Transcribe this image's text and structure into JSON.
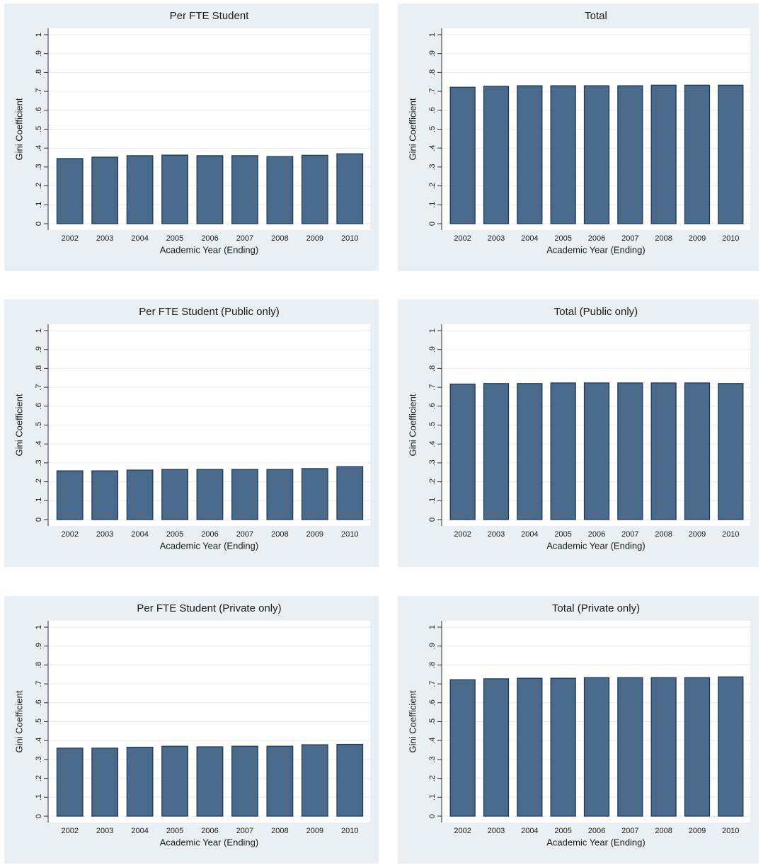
{
  "chart_data": [
    {
      "type": "bar",
      "title": "Per FTE Student",
      "x_label": "Academic Year (Ending)",
      "y_label": "Gini Coefficient",
      "categories": [
        "2002",
        "2003",
        "2004",
        "2005",
        "2006",
        "2007",
        "2008",
        "2009",
        "2010"
      ],
      "values": [
        0.345,
        0.352,
        0.36,
        0.363,
        0.36,
        0.36,
        0.355,
        0.362,
        0.37
      ],
      "color": "#4a6a8b",
      "ylim": [
        0,
        1
      ],
      "yticks": [
        0,
        {
          "value": 0.1,
          "label": ".1"
        },
        {
          "value": 0.2,
          "label": ".2"
        },
        {
          "value": 0.3,
          "label": ".3"
        },
        {
          "value": 0.4,
          "label": ".4"
        },
        {
          "value": 0.5,
          "label": ".5"
        },
        {
          "value": 0.6,
          "label": ".6"
        },
        {
          "value": 0.7,
          "label": ".7"
        },
        {
          "value": 0.8,
          "label": ".8"
        },
        {
          "value": 0.9,
          "label": ".9"
        },
        1
      ],
      "grid": true
    },
    {
      "type": "bar",
      "title": "Total",
      "x_label": "Academic Year (Ending)",
      "y_label": "Gini Coefficient",
      "categories": [
        "2002",
        "2003",
        "2004",
        "2005",
        "2006",
        "2007",
        "2008",
        "2009",
        "2010"
      ],
      "values": [
        0.722,
        0.727,
        0.73,
        0.73,
        0.73,
        0.73,
        0.733,
        0.733,
        0.733
      ],
      "color": "#4a6a8b",
      "ylim": [
        0,
        1
      ],
      "yticks": [
        0,
        {
          "value": 0.1,
          "label": ".1"
        },
        {
          "value": 0.2,
          "label": ".2"
        },
        {
          "value": 0.3,
          "label": ".3"
        },
        {
          "value": 0.4,
          "label": ".4"
        },
        {
          "value": 0.5,
          "label": ".5"
        },
        {
          "value": 0.6,
          "label": ".6"
        },
        {
          "value": 0.7,
          "label": ".7"
        },
        {
          "value": 0.8,
          "label": ".8"
        },
        {
          "value": 0.9,
          "label": ".9"
        },
        1
      ],
      "grid": true
    },
    {
      "type": "bar",
      "title": "Per FTE Student (Public only)",
      "x_label": "Academic Year (Ending)",
      "y_label": "Gini Coefficient",
      "categories": [
        "2002",
        "2003",
        "2004",
        "2005",
        "2006",
        "2007",
        "2008",
        "2009",
        "2010"
      ],
      "values": [
        0.258,
        0.258,
        0.262,
        0.265,
        0.265,
        0.265,
        0.265,
        0.27,
        0.28
      ],
      "color": "#4a6a8b",
      "ylim": [
        0,
        1
      ],
      "yticks": [
        0,
        {
          "value": 0.1,
          "label": ".1"
        },
        {
          "value": 0.2,
          "label": ".2"
        },
        {
          "value": 0.3,
          "label": ".3"
        },
        {
          "value": 0.4,
          "label": ".4"
        },
        {
          "value": 0.5,
          "label": ".5"
        },
        {
          "value": 0.6,
          "label": ".6"
        },
        {
          "value": 0.7,
          "label": ".7"
        },
        {
          "value": 0.8,
          "label": ".8"
        },
        {
          "value": 0.9,
          "label": ".9"
        },
        1
      ],
      "grid": true
    },
    {
      "type": "bar",
      "title": "Total (Public only)",
      "x_label": "Academic Year (Ending)",
      "y_label": "Gini Coefficient",
      "categories": [
        "2002",
        "2003",
        "2004",
        "2005",
        "2006",
        "2007",
        "2008",
        "2009",
        "2010"
      ],
      "values": [
        0.717,
        0.72,
        0.72,
        0.723,
        0.723,
        0.723,
        0.723,
        0.723,
        0.72
      ],
      "color": "#4a6a8b",
      "ylim": [
        0,
        1
      ],
      "yticks": [
        0,
        {
          "value": 0.1,
          "label": ".1"
        },
        {
          "value": 0.2,
          "label": ".2"
        },
        {
          "value": 0.3,
          "label": ".3"
        },
        {
          "value": 0.4,
          "label": ".4"
        },
        {
          "value": 0.5,
          "label": ".5"
        },
        {
          "value": 0.6,
          "label": ".6"
        },
        {
          "value": 0.7,
          "label": ".7"
        },
        {
          "value": 0.8,
          "label": ".8"
        },
        {
          "value": 0.9,
          "label": ".9"
        },
        1
      ],
      "grid": true
    },
    {
      "type": "bar",
      "title": "Per FTE Student (Private only)",
      "x_label": "Academic Year (Ending)",
      "y_label": "Gini Coefficient",
      "categories": [
        "2002",
        "2003",
        "2004",
        "2005",
        "2006",
        "2007",
        "2008",
        "2009",
        "2010"
      ],
      "values": [
        0.36,
        0.36,
        0.365,
        0.37,
        0.367,
        0.37,
        0.37,
        0.378,
        0.38
      ],
      "color": "#4a6a8b",
      "ylim": [
        0,
        1
      ],
      "yticks": [
        0,
        {
          "value": 0.1,
          "label": ".1"
        },
        {
          "value": 0.2,
          "label": ".2"
        },
        {
          "value": 0.3,
          "label": ".3"
        },
        {
          "value": 0.4,
          "label": ".4"
        },
        {
          "value": 0.5,
          "label": ".5"
        },
        {
          "value": 0.6,
          "label": ".6"
        },
        {
          "value": 0.7,
          "label": ".7"
        },
        {
          "value": 0.8,
          "label": ".8"
        },
        {
          "value": 0.9,
          "label": ".9"
        },
        1
      ],
      "grid": true
    },
    {
      "type": "bar",
      "title": "Total (Private only)",
      "x_label": "Academic Year (Ending)",
      "y_label": "Gini Coefficient",
      "categories": [
        "2002",
        "2003",
        "2004",
        "2005",
        "2006",
        "2007",
        "2008",
        "2009",
        "2010"
      ],
      "values": [
        0.722,
        0.727,
        0.73,
        0.73,
        0.733,
        0.733,
        0.733,
        0.733,
        0.737
      ],
      "color": "#4a6a8b",
      "ylim": [
        0,
        1
      ],
      "yticks": [
        0,
        {
          "value": 0.1,
          "label": ".1"
        },
        {
          "value": 0.2,
          "label": ".2"
        },
        {
          "value": 0.3,
          "label": ".3"
        },
        {
          "value": 0.4,
          "label": ".4"
        },
        {
          "value": 0.5,
          "label": ".5"
        },
        {
          "value": 0.6,
          "label": ".6"
        },
        {
          "value": 0.7,
          "label": ".7"
        },
        {
          "value": 0.8,
          "label": ".8"
        },
        {
          "value": 0.9,
          "label": ".9"
        },
        1
      ],
      "grid": true
    }
  ]
}
